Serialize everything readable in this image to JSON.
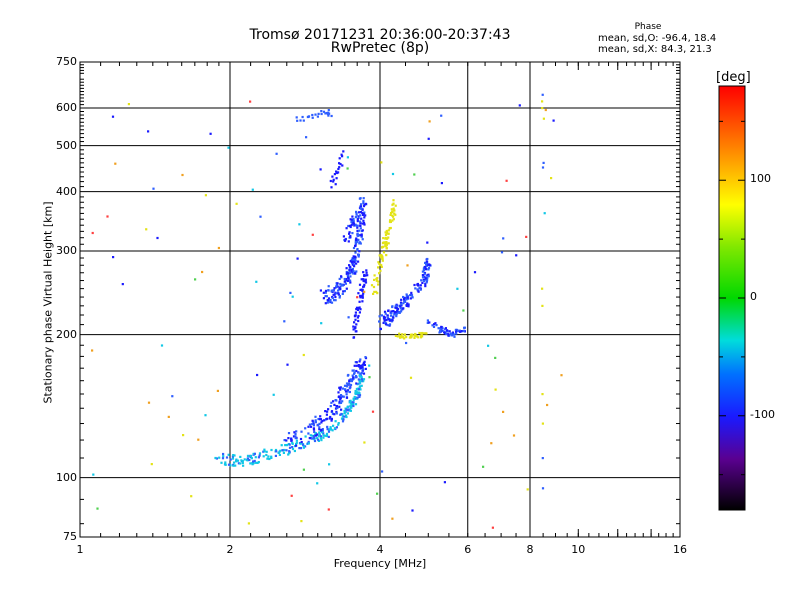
{
  "chart_data": {
    "type": "scatter",
    "title_line1": "Tromsø 20171231 20:36:00-20:37:43",
    "title_line2": "RwPretec (8p)",
    "phase_legend": {
      "heading": "Phase",
      "stat_o": "mean, sd,O: -96.4, 18.4",
      "stat_x": "mean, sd,X:  84.3, 21.3"
    },
    "xlabel": "Frequency [MHz]",
    "ylabel": "Stationary phase Virtual Height [km]",
    "x_scale": "log",
    "y_scale": "log",
    "xlim": [
      1,
      16
    ],
    "ylim": [
      75,
      750
    ],
    "xticks": [
      "1",
      "2",
      "4",
      "6",
      "8",
      "10",
      "16"
    ],
    "yticks": [
      "75",
      "100",
      "200",
      "300",
      "400",
      "500",
      "600",
      "750"
    ],
    "grid": true,
    "colorbar": {
      "unit": "[deg]",
      "range": [
        -180,
        180
      ],
      "ticks": [
        "100",
        "0",
        "-100"
      ]
    },
    "colors": {
      "dark_blue": "#1a1aff",
      "blue": "#2f5fff",
      "cyan": "#11c8e6",
      "yellow": "#e3e317",
      "orange": "#f0a020"
    }
  }
}
